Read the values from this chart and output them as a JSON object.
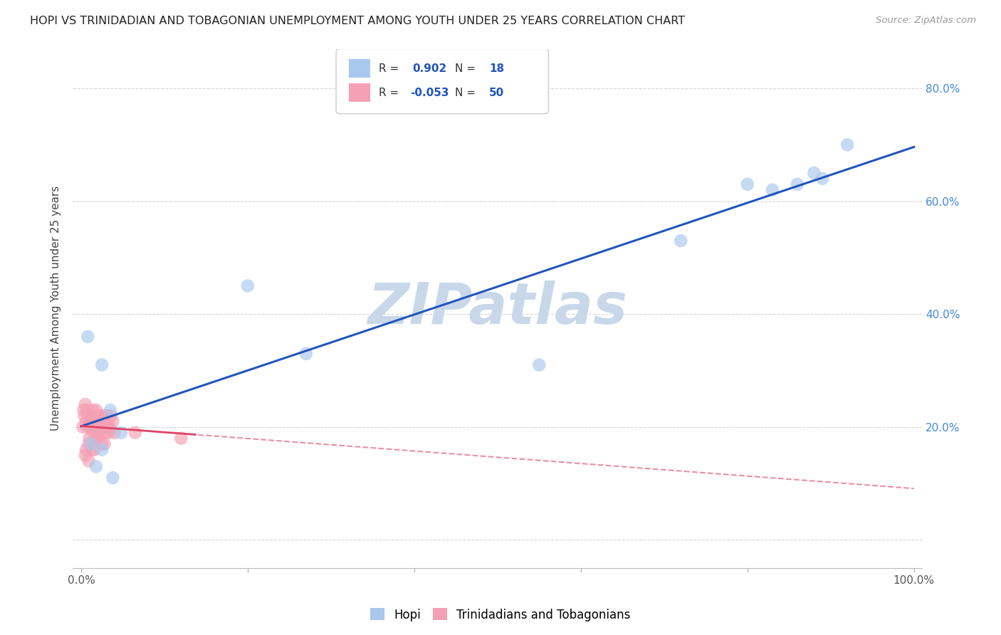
{
  "title": "HOPI VS TRINIDADIAN AND TOBAGONIAN UNEMPLOYMENT AMONG YOUTH UNDER 25 YEARS CORRELATION CHART",
  "source": "Source: ZipAtlas.com",
  "ylabel": "Unemployment Among Youth under 25 years",
  "xlim": [
    -0.01,
    1.01
  ],
  "ylim": [
    -0.05,
    0.87
  ],
  "hopi_color": "#a8c8ee",
  "trinidadian_color": "#f4a0b5",
  "hopi_line_color": "#2255bb",
  "trinidadian_line_color": "#dd4466",
  "hopi_R": 0.902,
  "hopi_N": 18,
  "trinidadian_R": -0.053,
  "trinidadian_N": 50,
  "hopi_x": [
    0.008,
    0.012,
    0.018,
    0.025,
    0.035,
    0.048,
    0.025,
    0.038,
    0.2,
    0.27,
    0.55,
    0.72,
    0.8,
    0.83,
    0.86,
    0.88,
    0.89,
    0.92
  ],
  "hopi_y": [
    0.36,
    0.17,
    0.13,
    0.31,
    0.23,
    0.19,
    0.16,
    0.11,
    0.45,
    0.33,
    0.31,
    0.53,
    0.63,
    0.62,
    0.63,
    0.65,
    0.64,
    0.7
  ],
  "trinidadian_x": [
    0.002,
    0.003,
    0.004,
    0.005,
    0.006,
    0.007,
    0.008,
    0.009,
    0.01,
    0.011,
    0.012,
    0.013,
    0.014,
    0.015,
    0.016,
    0.017,
    0.018,
    0.019,
    0.02,
    0.021,
    0.022,
    0.023,
    0.024,
    0.025,
    0.026,
    0.027,
    0.028,
    0.029,
    0.03,
    0.031,
    0.032,
    0.034,
    0.036,
    0.038,
    0.04,
    0.006,
    0.01,
    0.015,
    0.02,
    0.028,
    0.005,
    0.009,
    0.014,
    0.019,
    0.025,
    0.033,
    0.009,
    0.016,
    0.065,
    0.12
  ],
  "trinidadian_y": [
    0.2,
    0.23,
    0.22,
    0.24,
    0.21,
    0.23,
    0.2,
    0.22,
    0.21,
    0.2,
    0.22,
    0.21,
    0.23,
    0.2,
    0.22,
    0.21,
    0.23,
    0.2,
    0.19,
    0.22,
    0.21,
    0.2,
    0.22,
    0.21,
    0.2,
    0.22,
    0.21,
    0.19,
    0.2,
    0.22,
    0.21,
    0.2,
    0.22,
    0.21,
    0.19,
    0.16,
    0.18,
    0.19,
    0.18,
    0.17,
    0.15,
    0.17,
    0.16,
    0.18,
    0.17,
    0.19,
    0.14,
    0.16,
    0.19,
    0.18
  ],
  "background_color": "#ffffff",
  "watermark": "ZIPatlas",
  "watermark_color": "#c8d8ea",
  "legend_R_color": "#2255bb",
  "legend_N_color": "#333333"
}
